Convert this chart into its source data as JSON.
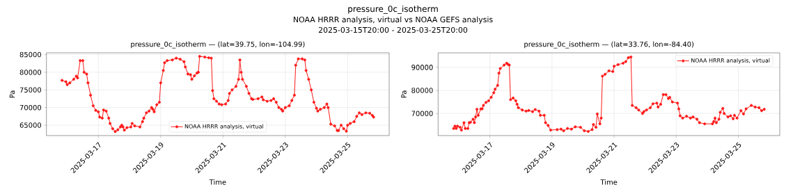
{
  "chart_data": [
    {
      "type": "line",
      "title": "pressure_0c_isotherm — (lat=39.75, lon=-104.99)",
      "xlabel": "Time",
      "ylabel": "Pa",
      "annotations": [
        "pressure_0c_isotherm",
        "NOAA HRRR analysis, virtual vs NOAA GEFS analysis",
        "2025-03-15T20:00 - 2025-03-25T20:00"
      ],
      "x": [
        "2025-03-15T20:00",
        "2025-03-15T23:00",
        "2025-03-16T00:00",
        "2025-03-16T02:00",
        "2025-03-16T05:00",
        "2025-03-16T07:00",
        "2025-03-16T08:00",
        "2025-03-16T10:00",
        "2025-03-16T12:00",
        "2025-03-16T13:00",
        "2025-03-16T15:00",
        "2025-03-16T16:00",
        "2025-03-16T18:00",
        "2025-03-16T20:00",
        "2025-03-16T22:00",
        "2025-03-17T00:00",
        "2025-03-17T01:00",
        "2025-03-17T03:00",
        "2025-03-17T04:00",
        "2025-03-17T06:00",
        "2025-03-17T08:00",
        "2025-03-17T09:00",
        "2025-03-17T11:00",
        "2025-03-17T13:00",
        "2025-03-17T15:00",
        "2025-03-17T17:00",
        "2025-03-17T18:00",
        "2025-03-17T19:00",
        "2025-03-17T20:00",
        "2025-03-17T22:00",
        "2025-03-18T01:00",
        "2025-03-18T02:00",
        "2025-03-18T04:00",
        "2025-03-18T08:00",
        "2025-03-18T10:00",
        "2025-03-18T11:00",
        "2025-03-18T13:00",
        "2025-03-18T15:00",
        "2025-03-18T17:00",
        "2025-03-18T18:00",
        "2025-03-18T19:00",
        "2025-03-18T21:00",
        "2025-03-18T23:00",
        "2025-03-19T00:00",
        "2025-03-19T02:00",
        "2025-03-19T03:00",
        "2025-03-19T05:00",
        "2025-03-19T09:00",
        "2025-03-19T12:00",
        "2025-03-19T15:00",
        "2025-03-19T18:00",
        "2025-03-19T19:00",
        "2025-03-19T21:00",
        "2025-03-19T23:00",
        "2025-03-20T00:00",
        "2025-03-20T02:00",
        "2025-03-20T04:00",
        "2025-03-20T05:00",
        "2025-03-20T06:00",
        "2025-03-20T10:00",
        "2025-03-20T13:00",
        "2025-03-20T15:00",
        "2025-03-20T16:00",
        "2025-03-20T17:00",
        "2025-03-20T19:00",
        "2025-03-20T21:00",
        "2025-03-20T23:00",
        "2025-03-21T02:00",
        "2025-03-21T04:00",
        "2025-03-21T05:00",
        "2025-03-21T07:00",
        "2025-03-21T10:00",
        "2025-03-21T12:00",
        "2025-03-21T13:00",
        "2025-03-21T14:00",
        "2025-03-21T15:00",
        "2025-03-21T18:00",
        "2025-03-21T20:00",
        "2025-03-21T22:00",
        "2025-03-21T23:00",
        "2025-03-22T03:00",
        "2025-03-22T06:00",
        "2025-03-22T07:00",
        "2025-03-22T10:00",
        "2025-03-22T13:00",
        "2025-03-22T15:00",
        "2025-03-22T17:00",
        "2025-03-22T19:00",
        "2025-03-22T21:00",
        "2025-03-22T22:00",
        "2025-03-23T00:00",
        "2025-03-23T03:00",
        "2025-03-23T05:00",
        "2025-03-23T07:00",
        "2025-03-23T08:00",
        "2025-03-23T10:00",
        "2025-03-23T13:00",
        "2025-03-23T15:00",
        "2025-03-23T16:00",
        "2025-03-23T18:00",
        "2025-03-23T20:00",
        "2025-03-23T22:00",
        "2025-03-24T00:00",
        "2025-03-24T01:00",
        "2025-03-24T03:00",
        "2025-03-24T06:00",
        "2025-03-24T08:00",
        "2025-03-24T09:00",
        "2025-03-24T11:00",
        "2025-03-24T14:00",
        "2025-03-24T16:00",
        "2025-03-24T17:00",
        "2025-03-24T19:00",
        "2025-03-24T21:00",
        "2025-03-24T23:00",
        "2025-03-25T00:00",
        "2025-03-25T02:00",
        "2025-03-25T05:00",
        "2025-03-25T07:00",
        "2025-03-25T09:00",
        "2025-03-25T11:00",
        "2025-03-25T14:00",
        "2025-03-25T17:00",
        "2025-03-25T19:00",
        "2025-03-25T20:00"
      ],
      "series": [
        {
          "name": "NOAA HRRR analysis, virtual",
          "color": "#ff1a1a",
          "values": [
            77700,
            77300,
            76500,
            77000,
            78000,
            78900,
            78400,
            83300,
            83300,
            80000,
            79500,
            77000,
            73500,
            70500,
            69200,
            68800,
            67300,
            67000,
            69300,
            69000,
            67000,
            65500,
            64000,
            63200,
            63700,
            64500,
            65000,
            64500,
            63600,
            64300,
            64500,
            65500,
            64800,
            64500,
            66000,
            67000,
            68500,
            69000,
            70000,
            69500,
            68800,
            70800,
            71500,
            77000,
            80500,
            82700,
            83300,
            83500,
            84000,
            83700,
            83000,
            81500,
            79500,
            79300,
            78000,
            79000,
            79800,
            80000,
            84500,
            84300,
            84100,
            84000,
            74800,
            72500,
            71800,
            71000,
            70800,
            71000,
            72000,
            74000,
            75000,
            76000,
            78000,
            83500,
            80000,
            78000,
            76000,
            74000,
            72500,
            72300,
            72500,
            73000,
            72200,
            71800,
            72000,
            72500,
            71500,
            70000,
            69500,
            69000,
            70000,
            70500,
            72000,
            73500,
            82000,
            83800,
            83800,
            83500,
            80500,
            78000,
            75000,
            71500,
            69800,
            69000,
            69500,
            70000,
            71000,
            70000,
            65300,
            64800,
            63500,
            63500,
            65000,
            64000,
            63300,
            65000,
            65500,
            66000,
            67500,
            68500,
            68000,
            68500,
            68400,
            67800,
            67300
          ]
        }
      ],
      "xlim": [
        "2025-03-15T08:00",
        "2025-03-26T08:00"
      ],
      "xticks": [
        "2025-03-17",
        "2025-03-19",
        "2025-03-21",
        "2025-03-23",
        "2025-03-25"
      ],
      "ylim": [
        62050,
        85500
      ],
      "yticks": [
        65000,
        70000,
        75000,
        80000,
        85000
      ],
      "grid": true,
      "legend": "bottom",
      "marker": "circle",
      "line_style": "solid"
    },
    {
      "type": "line",
      "title": "pressure_0c_isotherm — (lat=33.76, lon=-84.40)",
      "xlabel": "Time",
      "ylabel": "Pa",
      "x": [
        "2025-03-15T20:00",
        "2025-03-15T21:00",
        "2025-03-15T22:00",
        "2025-03-15T23:00",
        "2025-03-16T01:00",
        "2025-03-16T02:00",
        "2025-03-16T04:00",
        "2025-03-16T05:00",
        "2025-03-16T07:00",
        "2025-03-16T08:00",
        "2025-03-16T09:00",
        "2025-03-16T11:00",
        "2025-03-16T12:00",
        "2025-03-16T13:00",
        "2025-03-16T14:00",
        "2025-03-16T15:00",
        "2025-03-16T17:00",
        "2025-03-16T18:00",
        "2025-03-16T19:00",
        "2025-03-16T21:00",
        "2025-03-16T23:00",
        "2025-03-17T01:00",
        "2025-03-17T03:00",
        "2025-03-17T04:00",
        "2025-03-17T06:00",
        "2025-03-17T07:00",
        "2025-03-17T08:00",
        "2025-03-17T11:00",
        "2025-03-17T13:00",
        "2025-03-17T14:00",
        "2025-03-17T15:00",
        "2025-03-17T16:00",
        "2025-03-17T18:00",
        "2025-03-17T20:00",
        "2025-03-17T21:00",
        "2025-03-17T22:00",
        "2025-03-18T01:00",
        "2025-03-18T04:00",
        "2025-03-18T06:00",
        "2025-03-18T09:00",
        "2025-03-18T11:00",
        "2025-03-18T14:00",
        "2025-03-18T15:00",
        "2025-03-18T18:00",
        "2025-03-18T19:00",
        "2025-03-18T21:00",
        "2025-03-18T23:00",
        "2025-03-19T04:00",
        "2025-03-19T07:00",
        "2025-03-19T09:00",
        "2025-03-19T12:00",
        "2025-03-19T15:00",
        "2025-03-19T18:00",
        "2025-03-19T22:00",
        "2025-03-20T01:00",
        "2025-03-20T04:00",
        "2025-03-20T07:00",
        "2025-03-20T08:00",
        "2025-03-20T10:00",
        "2025-03-20T11:00",
        "2025-03-20T13:00",
        "2025-03-20T14:00",
        "2025-03-20T15:00",
        "2025-03-20T17:00",
        "2025-03-20T20:00",
        "2025-03-20T23:00",
        "2025-03-21T00:00",
        "2025-03-21T03:00",
        "2025-03-21T07:00",
        "2025-03-21T09:00",
        "2025-03-21T11:00",
        "2025-03-21T13:00",
        "2025-03-21T14:00",
        "2025-03-21T17:00",
        "2025-03-21T19:00",
        "2025-03-21T22:00",
        "2025-03-21T23:00",
        "2025-03-22T01:00",
        "2025-03-22T04:00",
        "2025-03-22T06:00",
        "2025-03-22T09:00",
        "2025-03-22T10:00",
        "2025-03-22T12:00",
        "2025-03-22T14:00",
        "2025-03-22T16:00",
        "2025-03-22T18:00",
        "2025-03-22T19:00",
        "2025-03-22T21:00",
        "2025-03-23T01:00",
        "2025-03-23T02:00",
        "2025-03-23T03:00",
        "2025-03-23T05:00",
        "2025-03-23T08:00",
        "2025-03-23T11:00",
        "2025-03-23T13:00",
        "2025-03-23T16:00",
        "2025-03-23T18:00",
        "2025-03-23T22:00",
        "2025-03-24T04:00",
        "2025-03-24T05:00",
        "2025-03-24T06:00",
        "2025-03-24T07:00",
        "2025-03-24T09:00",
        "2025-03-24T10:00",
        "2025-03-24T12:00",
        "2025-03-24T13:00",
        "2025-03-24T16:00",
        "2025-03-24T18:00",
        "2025-03-24T20:00",
        "2025-03-24T21:00",
        "2025-03-24T23:00",
        "2025-03-25T02:00",
        "2025-03-25T04:00",
        "2025-03-25T06:00",
        "2025-03-25T10:00",
        "2025-03-25T13:00",
        "2025-03-25T16:00",
        "2025-03-25T18:00",
        "2025-03-25T20:00"
      ],
      "series": [
        {
          "name": "NOAA HRRR analysis, virtual",
          "color": "#ff1a1a",
          "values": [
            63500,
            64500,
            63500,
            64500,
            64000,
            62800,
            66000,
            63500,
            63500,
            66000,
            66200,
            67500,
            66000,
            68500,
            71800,
            69200,
            72000,
            72000,
            73500,
            74800,
            75500,
            77000,
            79000,
            80500,
            82200,
            87500,
            89500,
            91000,
            91800,
            91300,
            91000,
            76000,
            76700,
            75500,
            74000,
            72500,
            71500,
            71000,
            71300,
            70800,
            71700,
            71000,
            69200,
            69200,
            66000,
            64800,
            62800,
            63000,
            63200,
            62500,
            63500,
            63200,
            64200,
            64000,
            62500,
            62200,
            63000,
            65200,
            64000,
            69800,
            65500,
            68000,
            86200,
            87000,
            88500,
            88200,
            90500,
            91200,
            91800,
            92500,
            94200,
            94500,
            73500,
            72500,
            71500,
            70000,
            70800,
            71500,
            72500,
            74200,
            74500,
            72800,
            74000,
            78200,
            78200,
            76500,
            77000,
            75000,
            74500,
            72000,
            69000,
            68000,
            68800,
            68000,
            68500,
            67500,
            66000,
            65500,
            65500,
            66500,
            68000,
            66000,
            67500,
            70500,
            72200,
            70000,
            68500,
            69000,
            67700,
            69200,
            68000,
            71200,
            69800,
            72000,
            73500,
            72800,
            72500,
            71200,
            71800
          ]
        }
      ],
      "xlim": [
        "2025-03-15T08:00",
        "2025-03-26T08:00"
      ],
      "xticks": [
        "2025-03-17",
        "2025-03-19",
        "2025-03-21",
        "2025-03-23",
        "2025-03-25"
      ],
      "ylim": [
        60400,
        96300
      ],
      "yticks": [
        70000,
        80000,
        90000
      ],
      "grid": true,
      "legend": "top right",
      "marker": "circle",
      "line_style": "solid"
    }
  ]
}
